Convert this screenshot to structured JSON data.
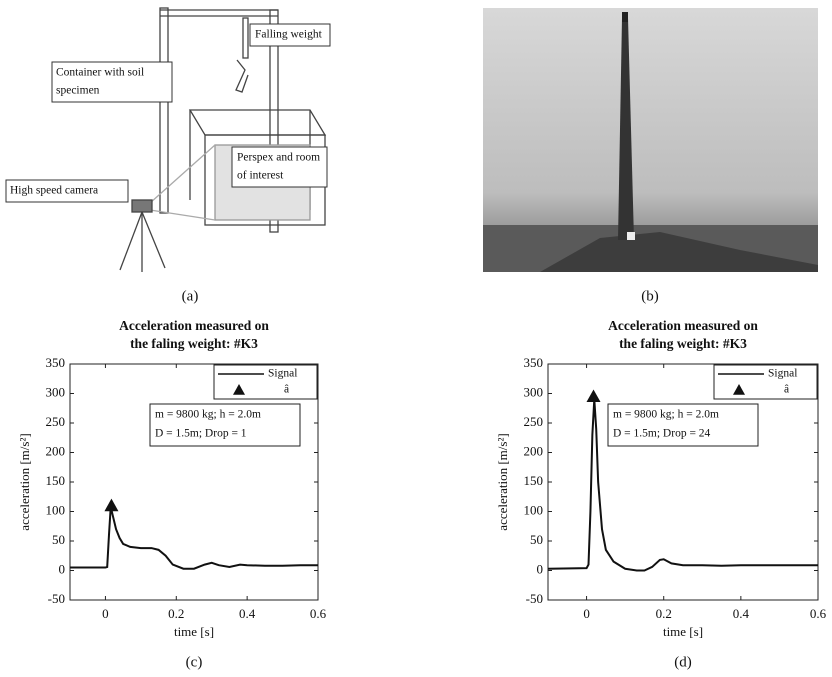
{
  "panels": [
    "(a)",
    "(b)",
    "(c)",
    "(d)"
  ],
  "diagram": {
    "labels": [
      [
        "Falling weight"
      ],
      [
        "Container with soil",
        "specimen"
      ],
      [
        "Perspex and room",
        "of interest"
      ],
      [
        "High speed camera"
      ]
    ]
  },
  "chart_data": [
    {
      "type": "line",
      "title": [
        "Acceleration measured on",
        "the faling weight: #K3"
      ],
      "xlabel": "time [s]",
      "ylabel": "acceleration [m/s²]",
      "xlim": [
        -0.1,
        0.6
      ],
      "xticks": [
        0,
        0.2,
        0.4,
        0.6
      ],
      "ylim": [
        -50,
        350
      ],
      "yticks": [
        -50,
        0,
        50,
        100,
        150,
        200,
        250,
        300,
        350
      ],
      "legend": "upper right",
      "annotation": [
        "m = 9800 kg;  h = 2.0m",
        "D = 1.5m; Drop = 1"
      ],
      "x": [
        -0.1,
        0.0,
        0.005,
        0.01,
        0.015,
        0.02,
        0.03,
        0.04,
        0.05,
        0.07,
        0.1,
        0.13,
        0.15,
        0.17,
        0.19,
        0.22,
        0.25,
        0.28,
        0.3,
        0.32,
        0.35,
        0.38,
        0.4,
        0.45,
        0.5,
        0.55,
        0.6
      ],
      "series": [
        {
          "name": "Signal",
          "color": "#111111",
          "values": [
            5,
            5,
            6,
            60,
            108,
            95,
            70,
            55,
            45,
            40,
            38,
            38,
            35,
            25,
            10,
            3,
            3,
            10,
            13,
            9,
            6,
            10,
            9,
            8,
            8,
            9,
            9
          ]
        },
        {
          "name": "â",
          "color": "#111111",
          "marker": "triangle",
          "x": [
            0.017
          ],
          "values": [
            110
          ]
        }
      ]
    },
    {
      "type": "line",
      "title": [
        "Acceleration measured on",
        "the faling weight: #K3"
      ],
      "xlabel": "time [s]",
      "ylabel": "acceleration [m/s²]",
      "xlim": [
        -0.1,
        0.6
      ],
      "xticks": [
        0,
        0.2,
        0.4,
        0.6
      ],
      "ylim": [
        -50,
        350
      ],
      "yticks": [
        -50,
        0,
        50,
        100,
        150,
        200,
        250,
        300,
        350
      ],
      "legend": "upper right",
      "annotation": [
        "m = 9800 kg;  h = 2.0m",
        "D = 1.5m; Drop = 24"
      ],
      "x": [
        -0.1,
        0.0,
        0.005,
        0.01,
        0.015,
        0.02,
        0.025,
        0.03,
        0.04,
        0.05,
        0.07,
        0.1,
        0.13,
        0.15,
        0.17,
        0.19,
        0.2,
        0.22,
        0.25,
        0.3,
        0.35,
        0.4,
        0.5,
        0.6
      ],
      "series": [
        {
          "name": "Signal",
          "color": "#111111",
          "values": [
            3,
            4,
            10,
            100,
            230,
            290,
            240,
            150,
            70,
            35,
            15,
            3,
            0,
            0,
            6,
            18,
            19,
            12,
            9,
            9,
            8,
            9,
            9,
            9
          ]
        },
        {
          "name": "â",
          "color": "#111111",
          "marker": "triangle",
          "x": [
            0.018
          ],
          "values": [
            295
          ]
        }
      ]
    }
  ]
}
